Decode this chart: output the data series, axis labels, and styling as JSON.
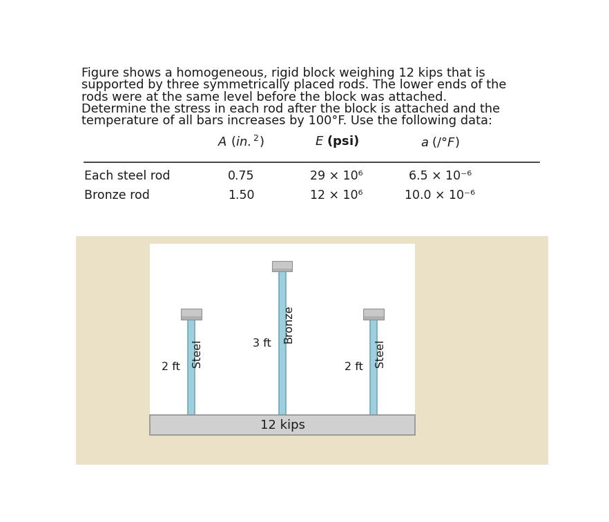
{
  "title_line1": "Figure shows a homogeneous, rigid block weighing 12 kips that is",
  "title_line2": "supported by three symmetrically placed rods. The lower ends of the",
  "title_line3": "rods were at the same level before the block was attached.",
  "title_line4": "Determine the stress in each rod after the block is attached and the",
  "title_line5": "temperature of all bars increases by 100°F. Use the following data:",
  "table_row1_label": "Each steel rod",
  "table_row1_A": "0.75",
  "table_row1_E": "29 × 10⁶",
  "table_row1_alpha": "6.5 × 10⁻⁶",
  "table_row2_label": "Bronze rod",
  "table_row2_A": "1.50",
  "table_row2_E": "12 × 10⁶",
  "table_row2_alpha": "10.0 × 10⁻⁶",
  "diagram_label_block": "12 kips",
  "diagram_label_bronze": "Bronze",
  "diagram_label_steel_left": "Steel",
  "diagram_label_steel_right": "Steel",
  "diagram_dim_steel": "2 ft",
  "diagram_dim_bronze": "3 ft",
  "rod_color": "#9ECFDD",
  "cap_color_light": "#C8C8C8",
  "cap_color_dark": "#909090",
  "block_color": "#D0D0D0",
  "block_outline": "#909090",
  "bg_color": "#FFFFFF",
  "text_color": "#1a1a1a",
  "watermark_bg": "#E8D5A8",
  "line_color": "#333333"
}
